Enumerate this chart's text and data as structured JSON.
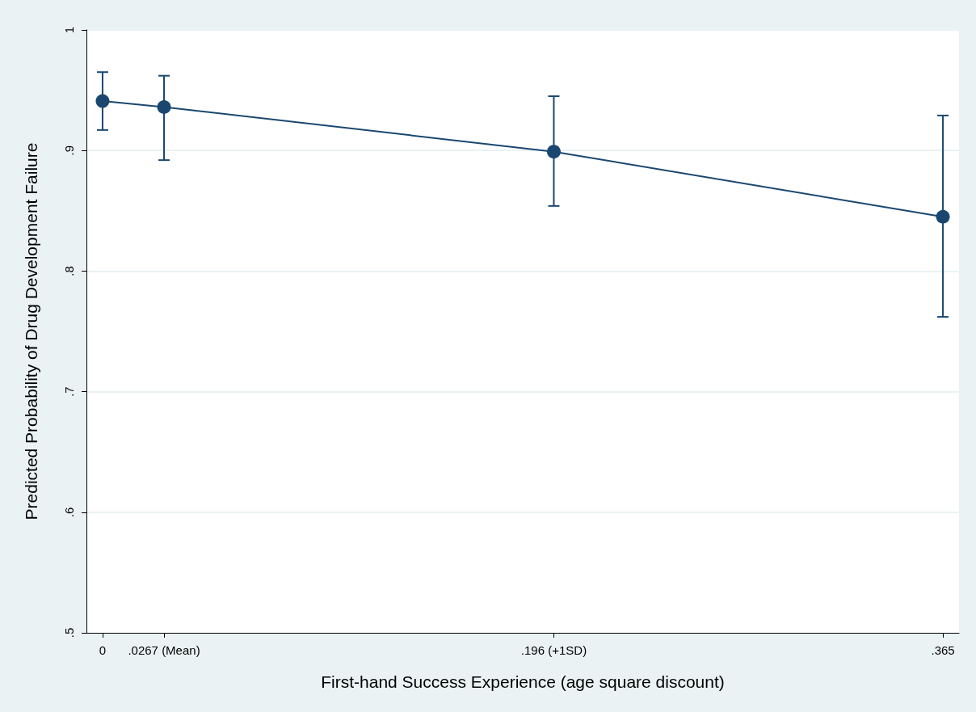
{
  "chart_data": {
    "type": "line",
    "xlabel": "First-hand Success Experience (age square discount)",
    "ylabel": "Predicted Probability of Drug Development Failure",
    "x": [
      0,
      0.0267,
      0.196,
      0.365
    ],
    "series": [
      {
        "color": "#1a476f",
        "values": [
          0.941,
          0.936,
          0.899,
          0.845
        ],
        "errors": [
          [
            0.917,
            0.965
          ],
          [
            0.892,
            0.962
          ],
          [
            0.854,
            0.945
          ],
          [
            0.762,
            0.929
          ]
        ]
      }
    ],
    "xlim": [
      -0.007,
      0.372
    ],
    "xticks": [
      0,
      {
        "value": 0.0267,
        "label": ".0267 (Mean)"
      },
      {
        "value": 0.196,
        "label": ".196 (+1SD)"
      },
      {
        "value": 0.365,
        "label": ".365"
      }
    ],
    "ylim": [
      0.5,
      1
    ],
    "yticks": [
      {
        "value": 0.5,
        "label": ".5"
      },
      {
        "value": 0.6,
        "label": ".6"
      },
      {
        "value": 0.7,
        "label": ".7"
      },
      {
        "value": 0.8,
        "label": ".8"
      },
      {
        "value": 0.9,
        "label": ".9"
      },
      1
    ],
    "grid": "y",
    "marker": "circle",
    "line_style": "solid"
  }
}
